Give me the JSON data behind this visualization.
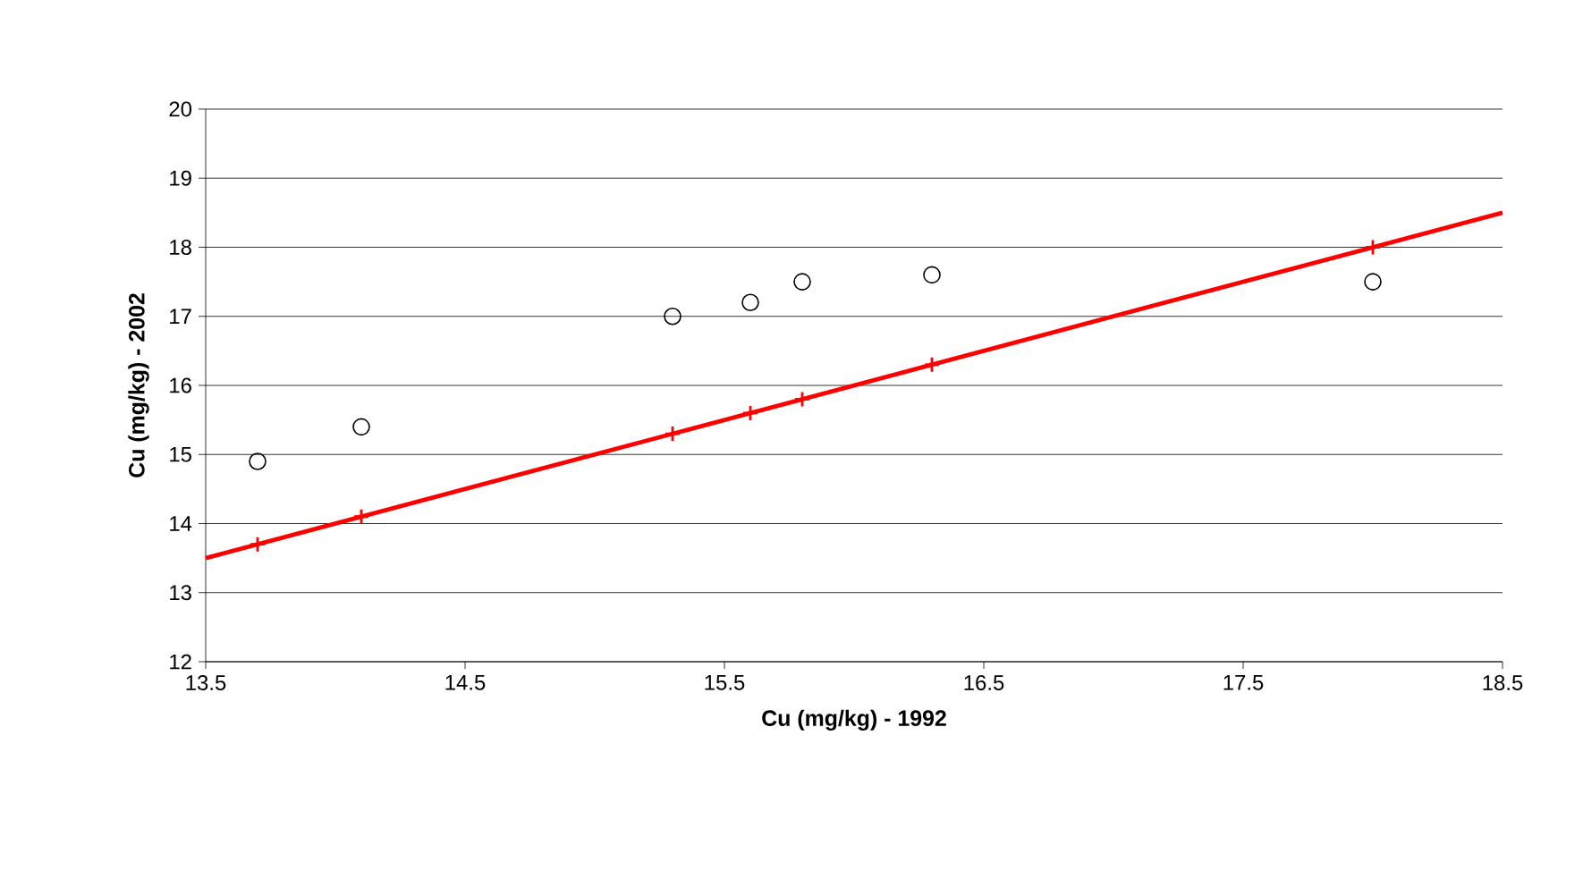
{
  "chart_data": {
    "type": "scatter",
    "xlabel": "Cu (mg/kg) - 1992",
    "ylabel": "Cu (mg/kg) - 2002",
    "xlim": [
      13.5,
      18.5
    ],
    "ylim": [
      12,
      20
    ],
    "xticks": [
      13.5,
      14.5,
      15.5,
      16.5,
      17.5,
      18.5
    ],
    "yticks": [
      12,
      13,
      14,
      15,
      16,
      17,
      18,
      19,
      20
    ],
    "grid": "y",
    "series": [
      {
        "color": "#000000",
        "marker": "circle",
        "x": [
          13.7,
          14.1,
          15.3,
          15.6,
          15.8,
          16.3,
          18.0
        ],
        "values": [
          14.9,
          15.4,
          17.0,
          17.2,
          17.5,
          17.6,
          17.5
        ]
      },
      {
        "type": "line",
        "color": "#ff0000",
        "marker": "none",
        "x": [
          13.5,
          18.5
        ],
        "values": [
          13.5,
          18.5
        ]
      },
      {
        "color": "#ff0000",
        "marker": "cross",
        "x": [
          13.7,
          14.1,
          15.3,
          15.6,
          15.8,
          16.3,
          18.0
        ],
        "values": [
          13.7,
          14.1,
          15.3,
          15.6,
          15.8,
          16.3,
          18.0
        ]
      }
    ]
  }
}
